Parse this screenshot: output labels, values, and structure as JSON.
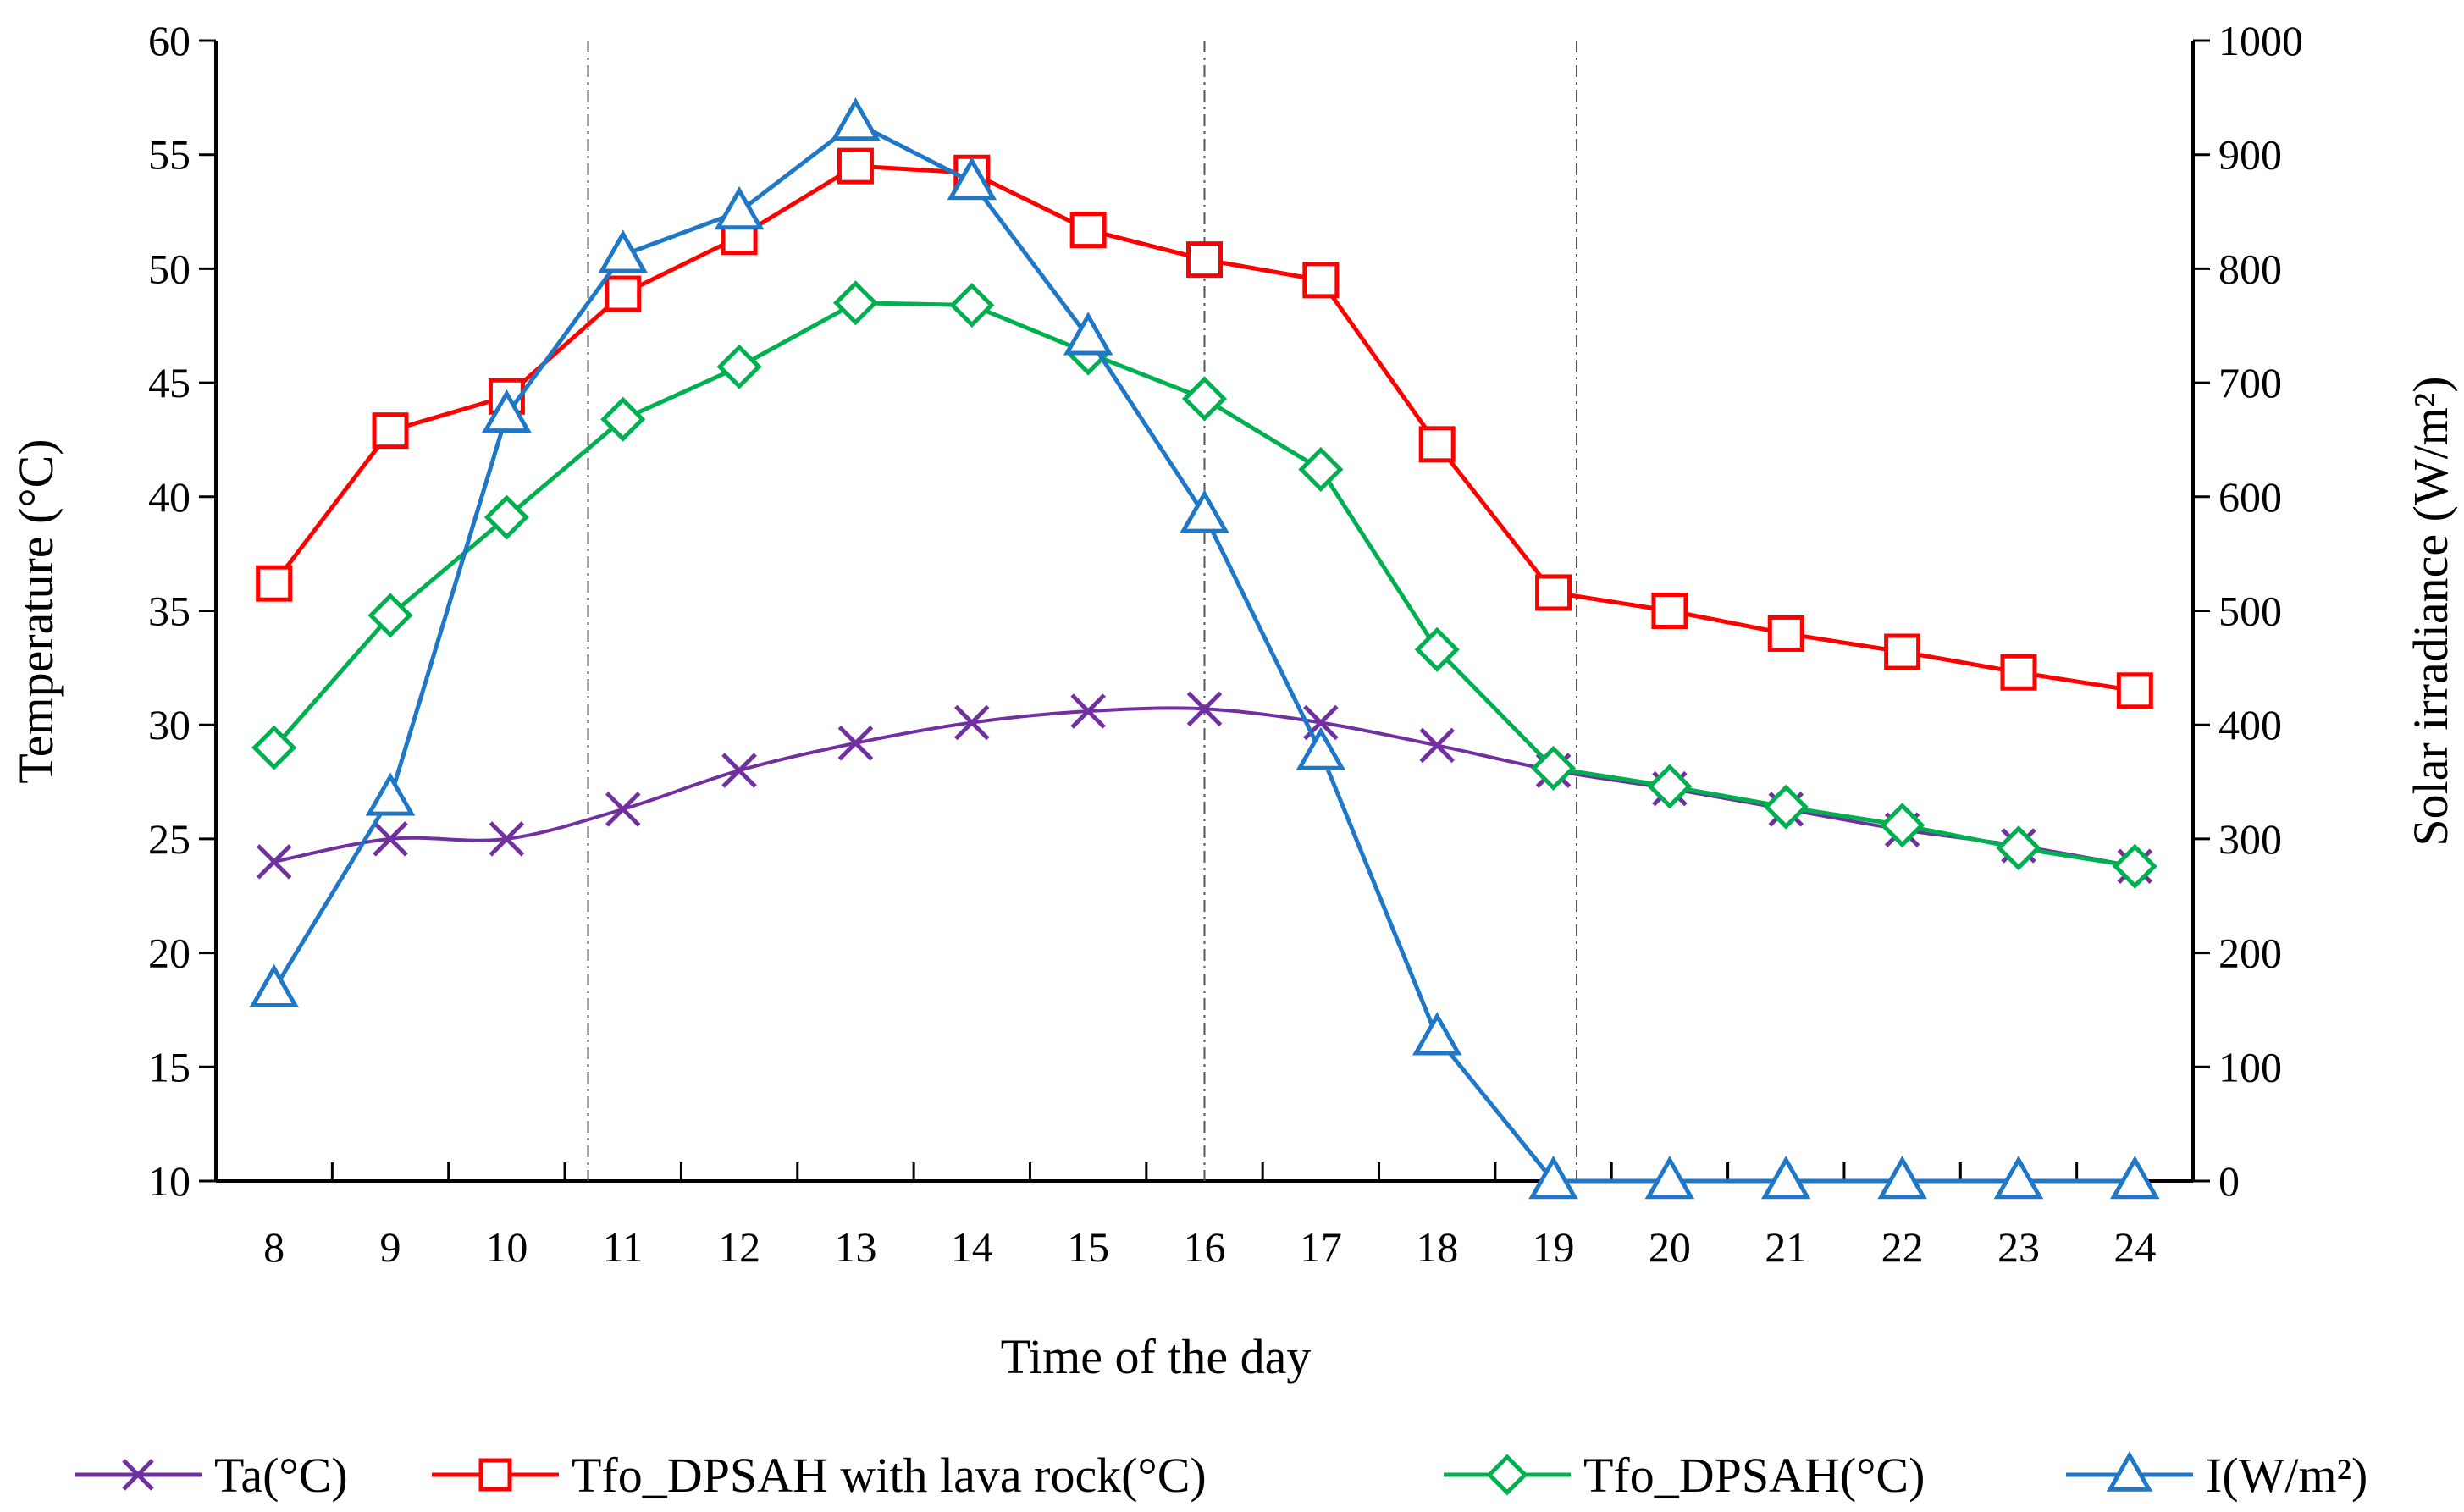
{
  "chart_data": {
    "type": "line",
    "title": "",
    "xlabel": "Time of the day",
    "ylabel": "Temperature (°C)",
    "y2label": "Solar irradiance (W/m²)",
    "x": [
      8,
      9,
      10,
      11,
      12,
      13,
      14,
      15,
      16,
      17,
      18,
      19,
      20,
      21,
      22,
      23,
      24
    ],
    "ylim": [
      10,
      60
    ],
    "yticks": [
      10,
      15,
      20,
      25,
      30,
      35,
      40,
      45,
      50,
      55,
      60
    ],
    "y2lim": [
      0,
      1000
    ],
    "y2ticks": [
      0,
      100,
      200,
      300,
      400,
      500,
      600,
      700,
      800,
      900,
      1000
    ],
    "grid": false,
    "vertical_markers": [
      10.7,
      16,
      19.2
    ],
    "legend_position": "bottom",
    "series": [
      {
        "name": "Ta(°C)",
        "axis": "left",
        "color": "#7030a0",
        "marker": "x",
        "values": [
          24,
          25,
          25,
          26.3,
          28,
          29.2,
          30.1,
          30.6,
          30.7,
          30.1,
          29.1,
          28,
          27.2,
          26.3,
          25.4,
          24.7,
          23.8
        ]
      },
      {
        "name": "Tfo_DPSAH with lava rock(°C)",
        "axis": "left",
        "color": "#ff0000",
        "marker": "square",
        "values": [
          36.2,
          42.9,
          44.4,
          48.9,
          51.4,
          54.5,
          54.2,
          51.7,
          50.4,
          49.5,
          42.3,
          35.8,
          35,
          34,
          33.2,
          32.3,
          31.5
        ]
      },
      {
        "name": "Tfo_DPSAH(°C)",
        "axis": "left",
        "color": "#00b050",
        "marker": "diamond",
        "values": [
          29,
          34.8,
          39.1,
          43.4,
          45.7,
          48.5,
          48.4,
          46.3,
          44.3,
          41.2,
          33.3,
          28.1,
          27.3,
          26.4,
          25.6,
          24.6,
          23.8
        ]
      },
      {
        "name": "I(W/m²)",
        "axis": "right",
        "color": "#1f77c8",
        "marker": "triangle",
        "values": [
          168,
          336,
          672,
          812,
          850,
          928,
          876,
          740,
          584,
          376,
          126,
          0,
          0,
          0,
          0,
          0,
          0
        ]
      }
    ]
  }
}
